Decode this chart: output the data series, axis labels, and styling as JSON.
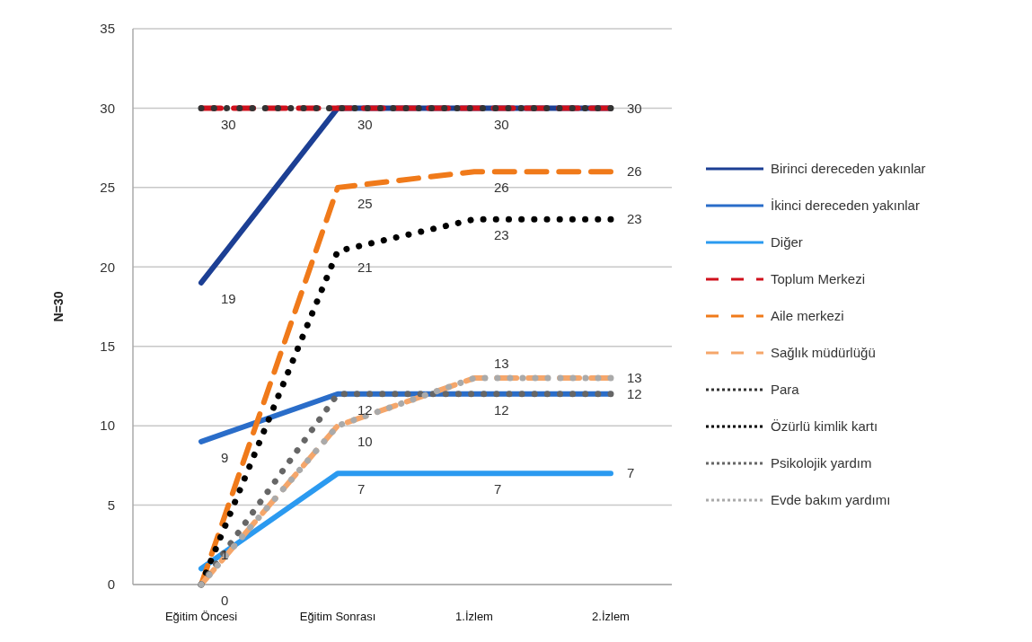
{
  "chart_data": {
    "type": "line",
    "ylabel": "N=30",
    "categories": [
      "Eğitim Öncesi",
      "Eğitim Sonrası",
      "1.İzlem",
      "2.İzlem"
    ],
    "ylim": [
      0,
      35
    ],
    "yticks": [
      0,
      5,
      10,
      15,
      20,
      25,
      30,
      35
    ],
    "grid": "y",
    "legend": "right",
    "marker": "none",
    "series": [
      {
        "name": "Birinci dereceden yakınlar",
        "color": "#1c3f94",
        "line_style": "solid",
        "values": [
          19,
          30,
          30,
          30
        ],
        "value_labels": [
          "19",
          "30",
          "30",
          "30"
        ]
      },
      {
        "name": "İkinci dereceden yakınlar",
        "color": "#2a6dc9",
        "line_style": "solid",
        "values": [
          9,
          12,
          12,
          12
        ],
        "value_labels": [
          "9",
          "12",
          "12",
          "12"
        ]
      },
      {
        "name": "Diğer",
        "color": "#2b9af0",
        "line_style": "solid",
        "values": [
          1,
          7,
          7,
          7
        ],
        "value_labels": [
          "1",
          "7",
          "7",
          "7"
        ]
      },
      {
        "name": "Toplum Merkezi",
        "color": "#d0101c",
        "line_style": "dashed",
        "values": [
          30,
          30,
          30,
          30
        ],
        "value_labels": [
          "30",
          null,
          null,
          null
        ]
      },
      {
        "name": "Aile merkezi",
        "color": "#f07a1a",
        "line_style": "dashed",
        "values": [
          0,
          25,
          26,
          26
        ],
        "value_labels": [
          "0",
          "25",
          "26",
          "26"
        ]
      },
      {
        "name": "Sağlık müdürlüğü",
        "color": "#f5a66a",
        "line_style": "dashed",
        "values": [
          0,
          10,
          13,
          13
        ],
        "value_labels": [
          null,
          "10",
          "13",
          "13"
        ]
      },
      {
        "name": "Para",
        "color": "#333333",
        "line_style": "dotted",
        "values": [
          30,
          30,
          30,
          30
        ],
        "value_labels": [
          null,
          null,
          null,
          null
        ]
      },
      {
        "name": "Özürlü kimlik kartı",
        "color": "#000000",
        "line_style": "dotted",
        "values": [
          0,
          21,
          23,
          23
        ],
        "value_labels": [
          null,
          "21",
          "23",
          "23"
        ]
      },
      {
        "name": "Psikolojik yardım",
        "color": "#666666",
        "line_style": "dotted",
        "values": [
          0,
          12,
          12,
          12
        ],
        "value_labels": [
          null,
          null,
          null,
          null
        ]
      },
      {
        "name": "Evde bakım yardımı",
        "color": "#aaaaaa",
        "line_style": "dotted",
        "values": [
          0,
          10,
          13,
          13
        ],
        "value_labels": [
          null,
          null,
          null,
          null
        ]
      }
    ]
  }
}
